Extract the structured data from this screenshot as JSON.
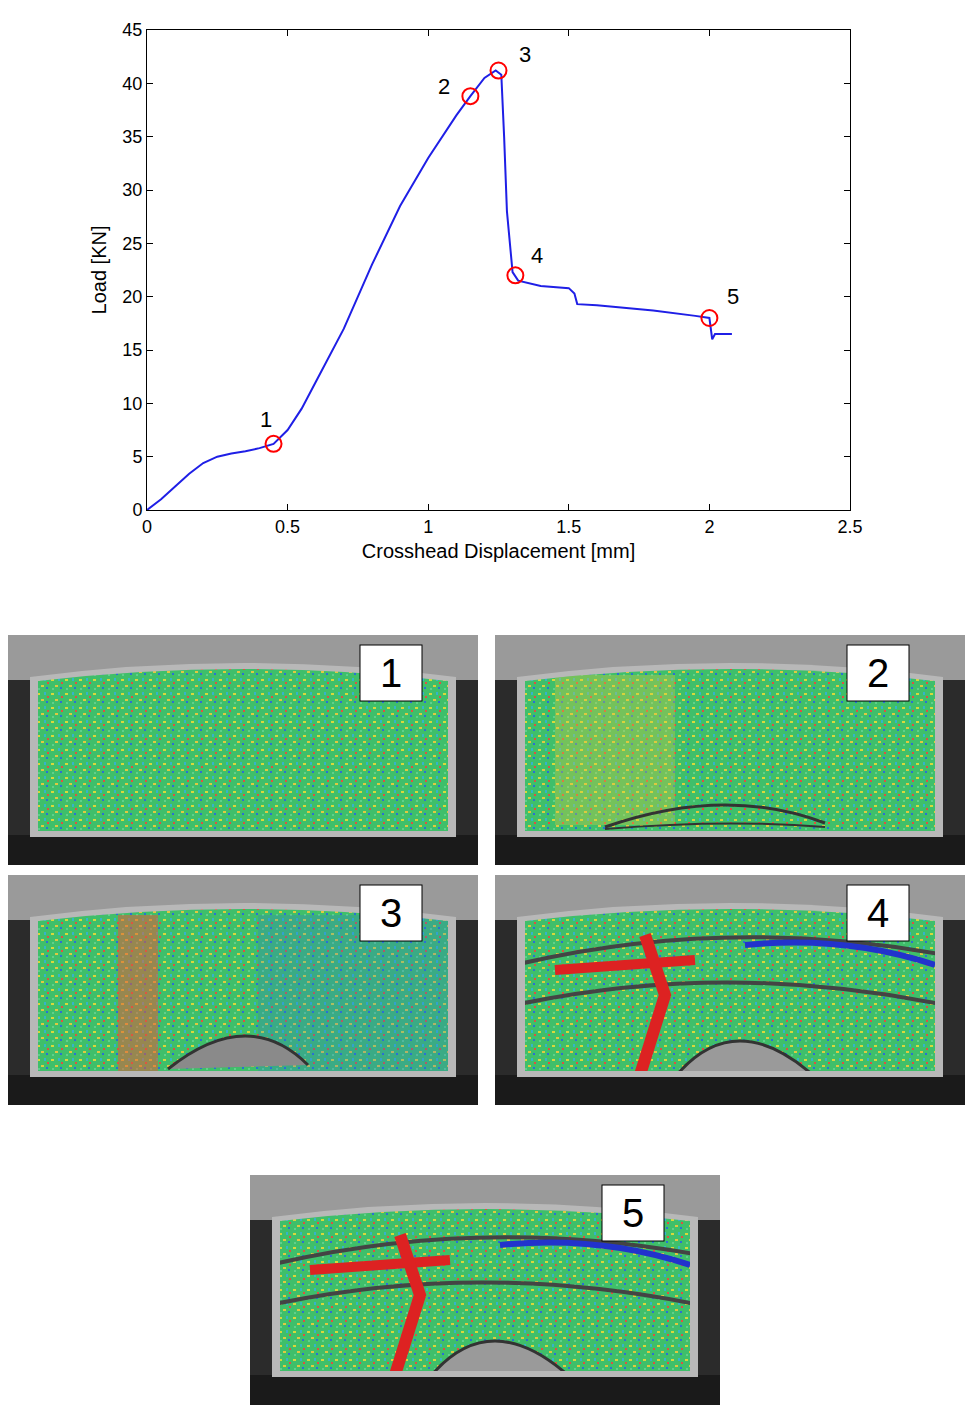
{
  "chart_data": {
    "type": "line",
    "x_label": "Crosshead Displacement [mm]",
    "y_label": "Load [KN]",
    "x": [
      0,
      0.05,
      0.1,
      0.15,
      0.2,
      0.25,
      0.3,
      0.35,
      0.4,
      0.45,
      0.5,
      0.55,
      0.6,
      0.7,
      0.8,
      0.9,
      1.0,
      1.05,
      1.1,
      1.15,
      1.2,
      1.24,
      1.26,
      1.27,
      1.28,
      1.3,
      1.32,
      1.4,
      1.5,
      1.52,
      1.53,
      1.6,
      1.8,
      1.95,
      2.0,
      2.01,
      2.02,
      2.08
    ],
    "values": [
      0,
      1,
      2.2,
      3.4,
      4.4,
      5,
      5.3,
      5.5,
      5.8,
      6.2,
      7.5,
      9.5,
      12,
      17,
      23,
      28.5,
      33,
      35,
      37,
      38.8,
      40.5,
      41.2,
      40.8,
      35,
      28,
      22.3,
      21.5,
      21,
      20.8,
      20.3,
      19.3,
      19.2,
      18.7,
      18.2,
      18,
      16,
      16.5,
      16.5
    ],
    "color": "#1f1fe6",
    "xlim": [
      0,
      2.5
    ],
    "xticks": [
      0,
      0.5,
      1,
      1.5,
      2,
      2.5
    ],
    "ylim": [
      0,
      45
    ],
    "yticks": [
      0,
      5,
      10,
      15,
      20,
      25,
      30,
      35,
      40,
      45
    ],
    "grid": false,
    "points": {
      "color": "#ff0000",
      "marker": "circle-open",
      "items": [
        {
          "x": 0.45,
          "y": 6.2,
          "label": "1"
        },
        {
          "x": 1.15,
          "y": 38.8,
          "label": "2"
        },
        {
          "x": 1.25,
          "y": 41.2,
          "label": "3"
        },
        {
          "x": 1.31,
          "y": 22,
          "label": "4"
        },
        {
          "x": 2.0,
          "y": 18,
          "label": "5"
        }
      ]
    }
  },
  "panels": [
    {
      "label": "1"
    },
    {
      "label": "2"
    },
    {
      "label": "3"
    },
    {
      "label": "4"
    },
    {
      "label": "5"
    }
  ]
}
